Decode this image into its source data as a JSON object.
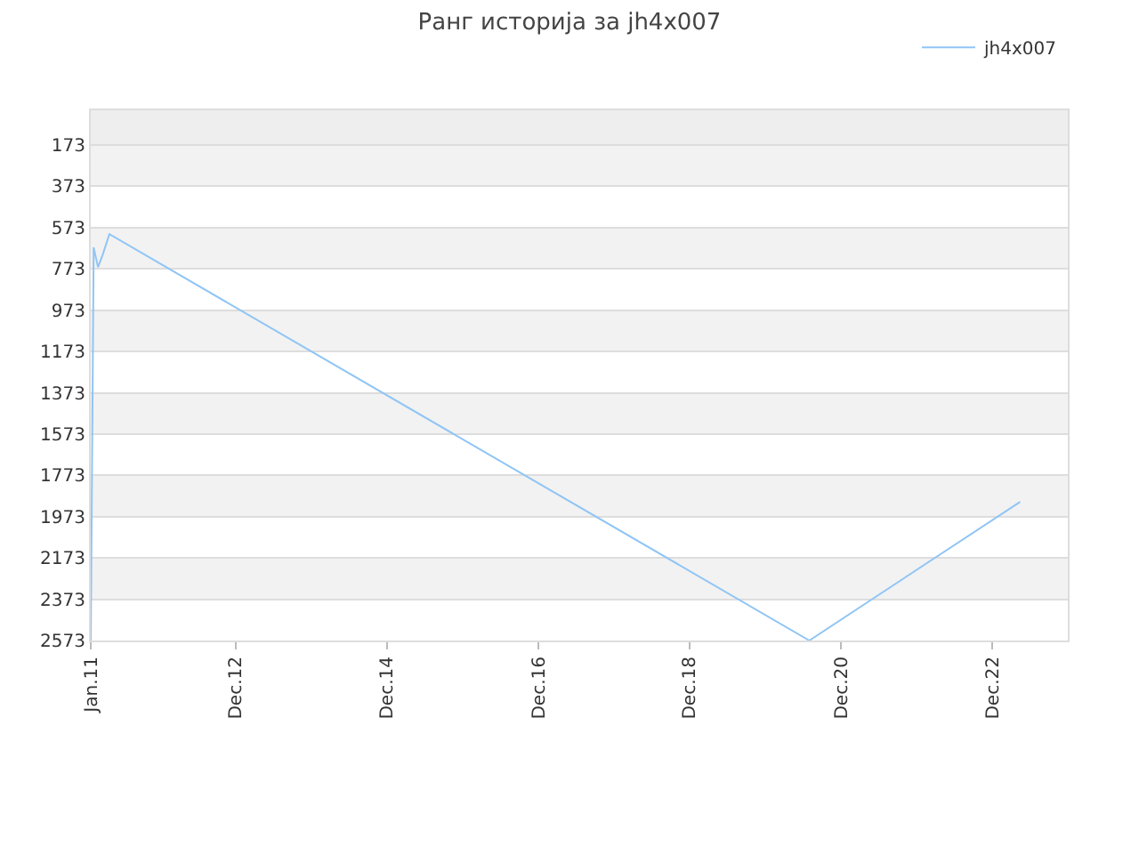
{
  "chart_data": {
    "type": "line",
    "title": "Ранг историја за jh4x007",
    "x": [
      "2011-01-01",
      "2011-01-15",
      "2011-02-05",
      "2011-03-01",
      "2011-04-01",
      "2020-07-01",
      "2023-04-15"
    ],
    "series": [
      {
        "name": "jh4x007",
        "color": "#90c5f5",
        "values": [
          2573,
          669,
          765,
          700,
          605,
          2573,
          1901
        ]
      }
    ],
    "ylim": [
      2573,
      5
    ],
    "yticks": [
      173,
      373,
      573,
      773,
      973,
      1173,
      1373,
      1573,
      1773,
      1973,
      2173,
      2373,
      2573
    ],
    "xlim": [
      "2011-01-01",
      "2023-12-01"
    ],
    "xticks": [
      {
        "value": "2011-01-01",
        "label": "Jan.11"
      },
      {
        "value": "2012-12-01",
        "label": "Dec.12"
      },
      {
        "value": "2014-12-01",
        "label": "Dec.14"
      },
      {
        "value": "2016-12-01",
        "label": "Dec.16"
      },
      {
        "value": "2018-12-01",
        "label": "Dec.18"
      },
      {
        "value": "2020-12-01",
        "label": "Dec.20"
      },
      {
        "value": "2022-12-01",
        "label": "Dec.22"
      }
    ],
    "bands": [
      {
        "axis": "y",
        "from": 5,
        "to": 173,
        "color": "#eeeeee"
      },
      {
        "axis": "y",
        "from": 173,
        "to": 373,
        "color": "#f2f2f2"
      },
      {
        "axis": "y",
        "from": 573,
        "to": 773,
        "color": "#f2f2f2"
      },
      {
        "axis": "y",
        "from": 973,
        "to": 1173,
        "color": "#f2f2f2"
      },
      {
        "axis": "y",
        "from": 1373,
        "to": 1573,
        "color": "#f2f2f2"
      },
      {
        "axis": "y",
        "from": 1773,
        "to": 1973,
        "color": "#f2f2f2"
      },
      {
        "axis": "y",
        "from": 2173,
        "to": 2373,
        "color": "#f2f2f2"
      }
    ],
    "grid": "y",
    "legend": "top right",
    "marker": "none",
    "line_style": "solid"
  }
}
